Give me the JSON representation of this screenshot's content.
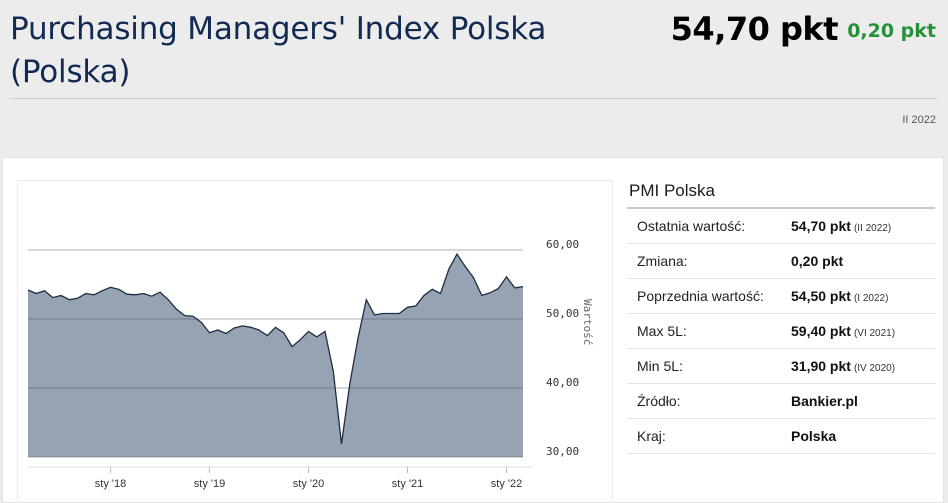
{
  "header": {
    "title": "Purchasing Managers' Index Polska (Polska)",
    "value": "54,70 pkt",
    "change": "0,20 pkt",
    "period": "II 2022"
  },
  "colors": {
    "title": "#122a52",
    "change_positive": "#23913a",
    "area_fill": "#96a3b3",
    "area_line": "#1f2d44"
  },
  "info": {
    "title": "PMI Polska",
    "rows": [
      {
        "label": "Ostatnia wartość:",
        "value": "54,70 pkt",
        "date": "(II 2022)"
      },
      {
        "label": "Zmiana:",
        "value": "0,20 pkt",
        "date": ""
      },
      {
        "label": "Poprzednia wartość:",
        "value": "54,50 pkt",
        "date": "(I 2022)"
      },
      {
        "label": "Max 5L:",
        "value": "59,40 pkt",
        "date": "(VI 2021)"
      },
      {
        "label": "Min 5L:",
        "value": "31,90 pkt",
        "date": "(IV 2020)"
      },
      {
        "label": "Źródło:",
        "value": "Bankier.pl",
        "date": ""
      },
      {
        "label": "Kraj:",
        "value": "Polska",
        "date": ""
      }
    ]
  },
  "chart_data": {
    "type": "area",
    "ylabel": "Wartość",
    "ylim": [
      30,
      60
    ],
    "yticks": [
      {
        "value": 30,
        "label": "30,00"
      },
      {
        "value": 40,
        "label": "40,00"
      },
      {
        "value": 50,
        "label": "50,00"
      },
      {
        "value": 60,
        "label": "60,00"
      }
    ],
    "xticks": [
      {
        "index": 10,
        "label": "sty '18"
      },
      {
        "index": 22,
        "label": "sty '19"
      },
      {
        "index": 34,
        "label": "sty '20"
      },
      {
        "index": 46,
        "label": "sty '21"
      },
      {
        "index": 58,
        "label": "sty '22"
      }
    ],
    "grid": true,
    "series": [
      {
        "values": [
          54.2,
          53.7,
          54.1,
          53.1,
          53.4,
          52.8,
          53.0,
          53.7,
          53.5,
          54.1,
          54.6,
          54.3,
          53.6,
          53.5,
          53.7,
          53.3,
          53.9,
          52.8,
          51.4,
          50.5,
          50.4,
          49.5,
          48.0,
          48.4,
          47.9,
          48.7,
          49.0,
          48.8,
          48.4,
          47.6,
          48.8,
          48.0,
          46.0,
          47.0,
          48.2,
          47.4,
          48.2,
          42.4,
          31.9,
          40.6,
          47.2,
          52.8,
          50.6,
          50.8,
          50.8,
          50.8,
          51.7,
          51.9,
          53.4,
          54.3,
          53.7,
          57.2,
          59.4,
          57.6,
          56.0,
          53.4,
          53.8,
          54.4,
          56.1,
          54.5,
          54.7
        ]
      }
    ]
  }
}
